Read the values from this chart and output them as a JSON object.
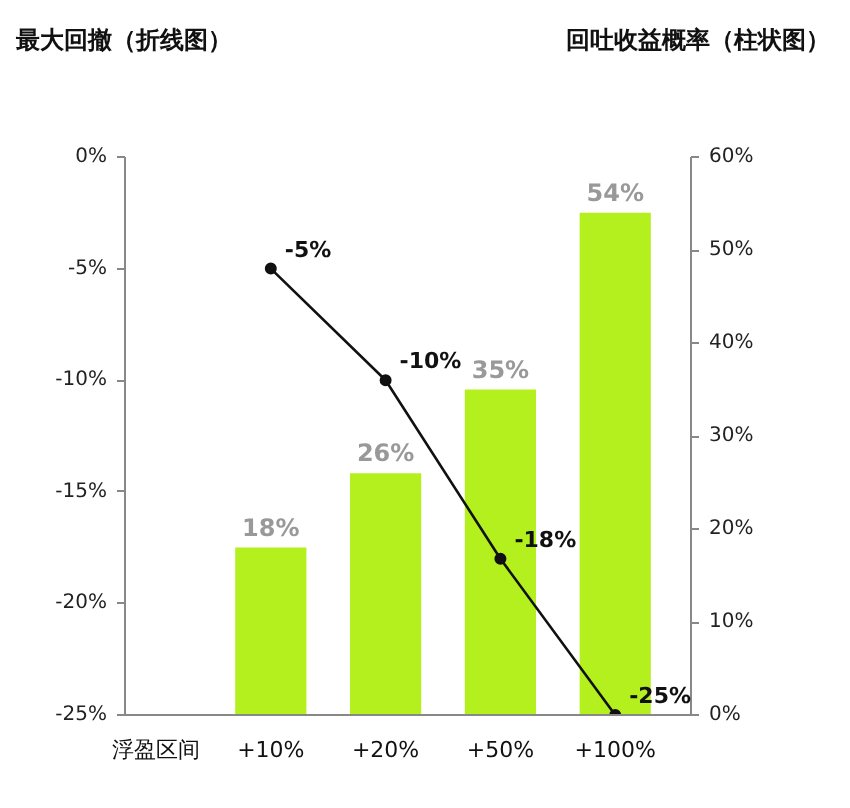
{
  "chart_data": {
    "type": "bar",
    "title": "最大回撤（折线图）",
    "subtitle": "回吐收益概率（柱状图）",
    "xlabel": "浮盈区间",
    "categories": [
      "+10%",
      "+20%",
      "+50%",
      "+100%"
    ],
    "series": [
      {
        "axis": "y2",
        "color": "#b4f01e",
        "values": [
          18,
          26,
          35,
          54
        ],
        "value_labels": [
          "18%",
          "26%",
          "35%",
          "54%"
        ]
      },
      {
        "type": "line",
        "axis": "y",
        "color": "#111111",
        "values": [
          -5,
          -10,
          -18,
          -25
        ],
        "value_labels": [
          "-5%",
          "-10%",
          "-18%",
          "-25%"
        ]
      }
    ],
    "ylim": [
      -25,
      0
    ],
    "yticks": [
      {
        "value": 0,
        "label": "0%"
      },
      {
        "value": -5,
        "label": "-5%"
      },
      {
        "value": -10,
        "label": "-10%"
      },
      {
        "value": -15,
        "label": "-15%"
      },
      {
        "value": -20,
        "label": "-20%"
      },
      {
        "value": -25,
        "label": "-25%"
      }
    ],
    "y2lim": [
      0,
      60
    ],
    "y2ticks": [
      {
        "value": 0,
        "label": "0%"
      },
      {
        "value": 10,
        "label": "10%"
      },
      {
        "value": 20,
        "label": "20%"
      },
      {
        "value": 30,
        "label": "30%"
      },
      {
        "value": 40,
        "label": "40%"
      },
      {
        "value": 50,
        "label": "50%"
      },
      {
        "value": 60,
        "label": "60%"
      }
    ],
    "marker": "circle",
    "grid": false
  }
}
